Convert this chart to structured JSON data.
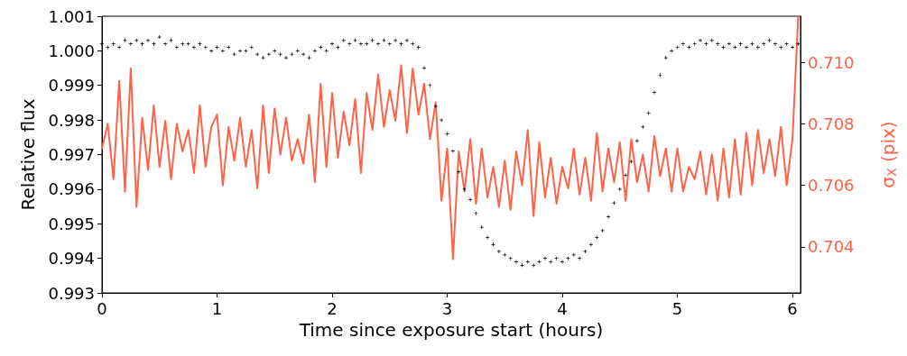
{
  "chart_data": {
    "type": "scatter",
    "xlabel": "Time since exposure start (hours)",
    "ylabel": "Relative flux",
    "y2label": "σ$_{X}$ (pix)",
    "x": [
      0,
      0.05,
      0.1,
      0.15,
      0.2,
      0.25,
      0.3,
      0.35,
      0.4,
      0.45,
      0.5,
      0.55,
      0.6,
      0.65,
      0.7,
      0.75,
      0.8,
      0.85,
      0.9,
      0.95,
      1,
      1.05,
      1.1,
      1.15,
      1.2,
      1.25,
      1.3,
      1.35,
      1.4,
      1.45,
      1.5,
      1.55,
      1.6,
      1.65,
      1.7,
      1.75,
      1.8,
      1.85,
      1.9,
      1.95,
      2,
      2.05,
      2.1,
      2.15,
      2.2,
      2.25,
      2.3,
      2.35,
      2.4,
      2.45,
      2.5,
      2.55,
      2.6,
      2.65,
      2.7,
      2.75,
      2.8,
      2.85,
      2.9,
      2.95,
      3,
      3.05,
      3.1,
      3.15,
      3.2,
      3.25,
      3.3,
      3.35,
      3.4,
      3.45,
      3.5,
      3.55,
      3.6,
      3.65,
      3.7,
      3.75,
      3.8,
      3.85,
      3.9,
      3.95,
      4,
      4.05,
      4.1,
      4.15,
      4.2,
      4.25,
      4.3,
      4.35,
      4.4,
      4.45,
      4.5,
      4.55,
      4.6,
      4.65,
      4.7,
      4.75,
      4.8,
      4.85,
      4.9,
      4.95,
      5,
      5.05,
      5.1,
      5.15,
      5.2,
      5.25,
      5.3,
      5.35,
      5.4,
      5.45,
      5.5,
      5.55,
      5.6,
      5.65,
      5.7,
      5.75,
      5.8,
      5.85,
      5.9,
      5.95,
      6,
      6.05
    ],
    "series": [
      {
        "type": "line",
        "axis": "y2",
        "color": "#ff6347",
        "marker": "none",
        "values": [
          0.7072,
          0.708,
          0.7062,
          0.7094,
          0.7058,
          0.7098,
          0.7053,
          0.7082,
          0.7065,
          0.7086,
          0.7066,
          0.7081,
          0.7062,
          0.708,
          0.7071,
          0.7078,
          0.7064,
          0.7086,
          0.7066,
          0.7079,
          0.7083,
          0.706,
          0.7079,
          0.7068,
          0.7082,
          0.7066,
          0.7078,
          0.7059,
          0.7086,
          0.7064,
          0.7085,
          0.707,
          0.7082,
          0.7068,
          0.7075,
          0.7067,
          0.7083,
          0.7061,
          0.7093,
          0.7066,
          0.709,
          0.7069,
          0.7084,
          0.7073,
          0.7088,
          0.7064,
          0.709,
          0.7078,
          0.7096,
          0.7079,
          0.7091,
          0.7081,
          0.7099,
          0.7077,
          0.7098,
          0.7083,
          0.7093,
          0.7075,
          0.7087,
          0.7055,
          0.7072,
          0.7036,
          0.7071,
          0.7058,
          0.7075,
          0.7054,
          0.7072,
          0.7056,
          0.7066,
          0.7053,
          0.7068,
          0.7052,
          0.7071,
          0.706,
          0.7078,
          0.705,
          0.7074,
          0.7056,
          0.7069,
          0.7054,
          0.7066,
          0.7059,
          0.7072,
          0.7057,
          0.7069,
          0.7055,
          0.7077,
          0.7058,
          0.7072,
          0.7061,
          0.7074,
          0.7055,
          0.7075,
          0.7061,
          0.707,
          0.7058,
          0.7076,
          0.7063,
          0.7072,
          0.7058,
          0.7072,
          0.7058,
          0.7066,
          0.7062,
          0.7071,
          0.7057,
          0.707,
          0.7055,
          0.7072,
          0.7056,
          0.7075,
          0.7057,
          0.7077,
          0.706,
          0.7078,
          0.7064,
          0.7075,
          0.7063,
          0.7079,
          0.706,
          0.7075,
          0.7115
        ]
      },
      {
        "color": "#000000",
        "marker": "cross",
        "values": [
          1.0002,
          1.0001,
          1.0002,
          1.0001,
          1.0003,
          1.0002,
          1.0003,
          1.0002,
          1.0003,
          1.0002,
          1.0004,
          1.0002,
          1.0003,
          1.0001,
          1.0002,
          1.0002,
          1.0001,
          1.0002,
          1.0001,
          1.0,
          1.0001,
          1.0,
          1.0001,
          0.9999,
          1.0,
          1.0,
          1.0001,
          0.9999,
          0.9998,
          0.9999,
          1.0,
          0.9999,
          0.9998,
          0.9999,
          1.0,
          0.9999,
          0.9998,
          1.0,
          1.0001,
          1.0,
          1.0002,
          1.0001,
          1.0003,
          1.0002,
          1.0003,
          1.0002,
          1.0002,
          1.0003,
          1.0002,
          1.0003,
          1.0002,
          1.0003,
          1.0002,
          1.0003,
          1.0002,
          1.0001,
          0.9995,
          0.999,
          0.9984,
          0.998,
          0.9976,
          0.9971,
          0.9965,
          0.996,
          0.9957,
          0.9953,
          0.9949,
          0.9946,
          0.9944,
          0.9942,
          0.9941,
          0.994,
          0.9939,
          0.9938,
          0.9939,
          0.9938,
          0.9939,
          0.994,
          0.9939,
          0.994,
          0.9939,
          0.994,
          0.9941,
          0.994,
          0.9942,
          0.9944,
          0.9946,
          0.9948,
          0.9952,
          0.9956,
          0.996,
          0.9964,
          0.9968,
          0.9974,
          0.9978,
          0.9982,
          0.9988,
          0.9993,
          0.9998,
          1.0,
          1.0001,
          1.0002,
          1.0001,
          1.0002,
          1.0003,
          1.0002,
          1.0003,
          1.0002,
          1.0001,
          1.0002,
          1.0001,
          1.0002,
          1.0001,
          1.0002,
          1.0001,
          1.0002,
          1.0003,
          1.0002,
          1.0001,
          1.0002,
          1.0001,
          1.0002
        ]
      }
    ],
    "xlim": [
      0,
      6.07
    ],
    "xticks": [
      0,
      1,
      2,
      3,
      4,
      5,
      6
    ],
    "ylim": [
      0.993,
      1.001
    ],
    "yticks": [
      0.993,
      0.994,
      0.995,
      0.996,
      0.997,
      0.998,
      0.999,
      {
        "value": 1,
        "label": "1.000"
      },
      1.001
    ],
    "y2lim": [
      0.7025,
      0.7115
    ],
    "y2ticks": [
      0.704,
      0.706,
      0.708,
      {
        "value": 0.71,
        "label": "0.710"
      }
    ]
  }
}
